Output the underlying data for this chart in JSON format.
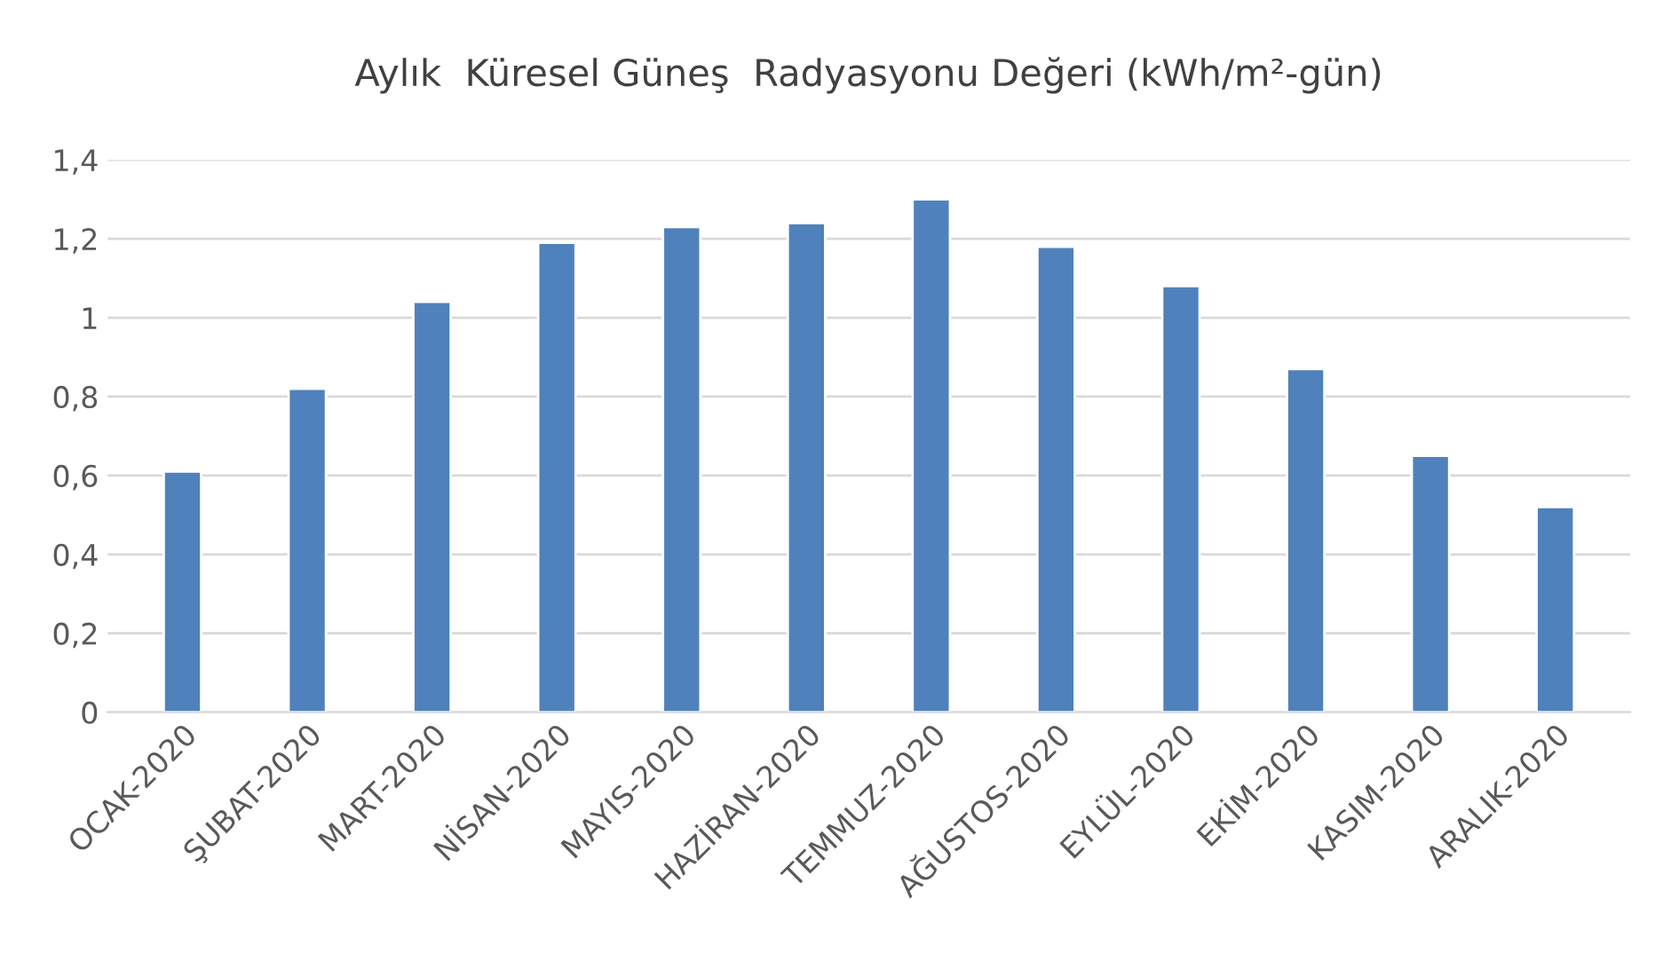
{
  "chart_data": {
    "type": "bar",
    "title": "Aylık  Küresel Güneş  Radyasyonu Değeri (kWh/m²-gün)",
    "categories": [
      "OCAK-2020",
      "ŞUBAT-2020",
      "MART-2020",
      "NİSAN-2020",
      "MAYIS-2020",
      "HAZİRAN-2020",
      "TEMMUZ-2020",
      "AĞUSTOS-2020",
      "EYLÜL-2020",
      "EKİM-2020",
      "KASIM-2020",
      "ARALIK-2020"
    ],
    "values": [
      0.61,
      0.82,
      1.04,
      1.19,
      1.23,
      1.24,
      1.3,
      1.18,
      1.08,
      0.87,
      0.65,
      0.52
    ],
    "color": "#4f81bd",
    "ylim": [
      0,
      1.4
    ],
    "yticks": [
      0,
      {
        "value": 0.2,
        "label": "0,2"
      },
      {
        "value": 0.4,
        "label": "0,4"
      },
      {
        "value": 0.6,
        "label": "0,6"
      },
      {
        "value": 0.8,
        "label": "0,8"
      },
      1,
      {
        "value": 1.2,
        "label": "1,2"
      },
      {
        "value": 1.4,
        "label": "1,4"
      }
    ],
    "grid": "y"
  }
}
